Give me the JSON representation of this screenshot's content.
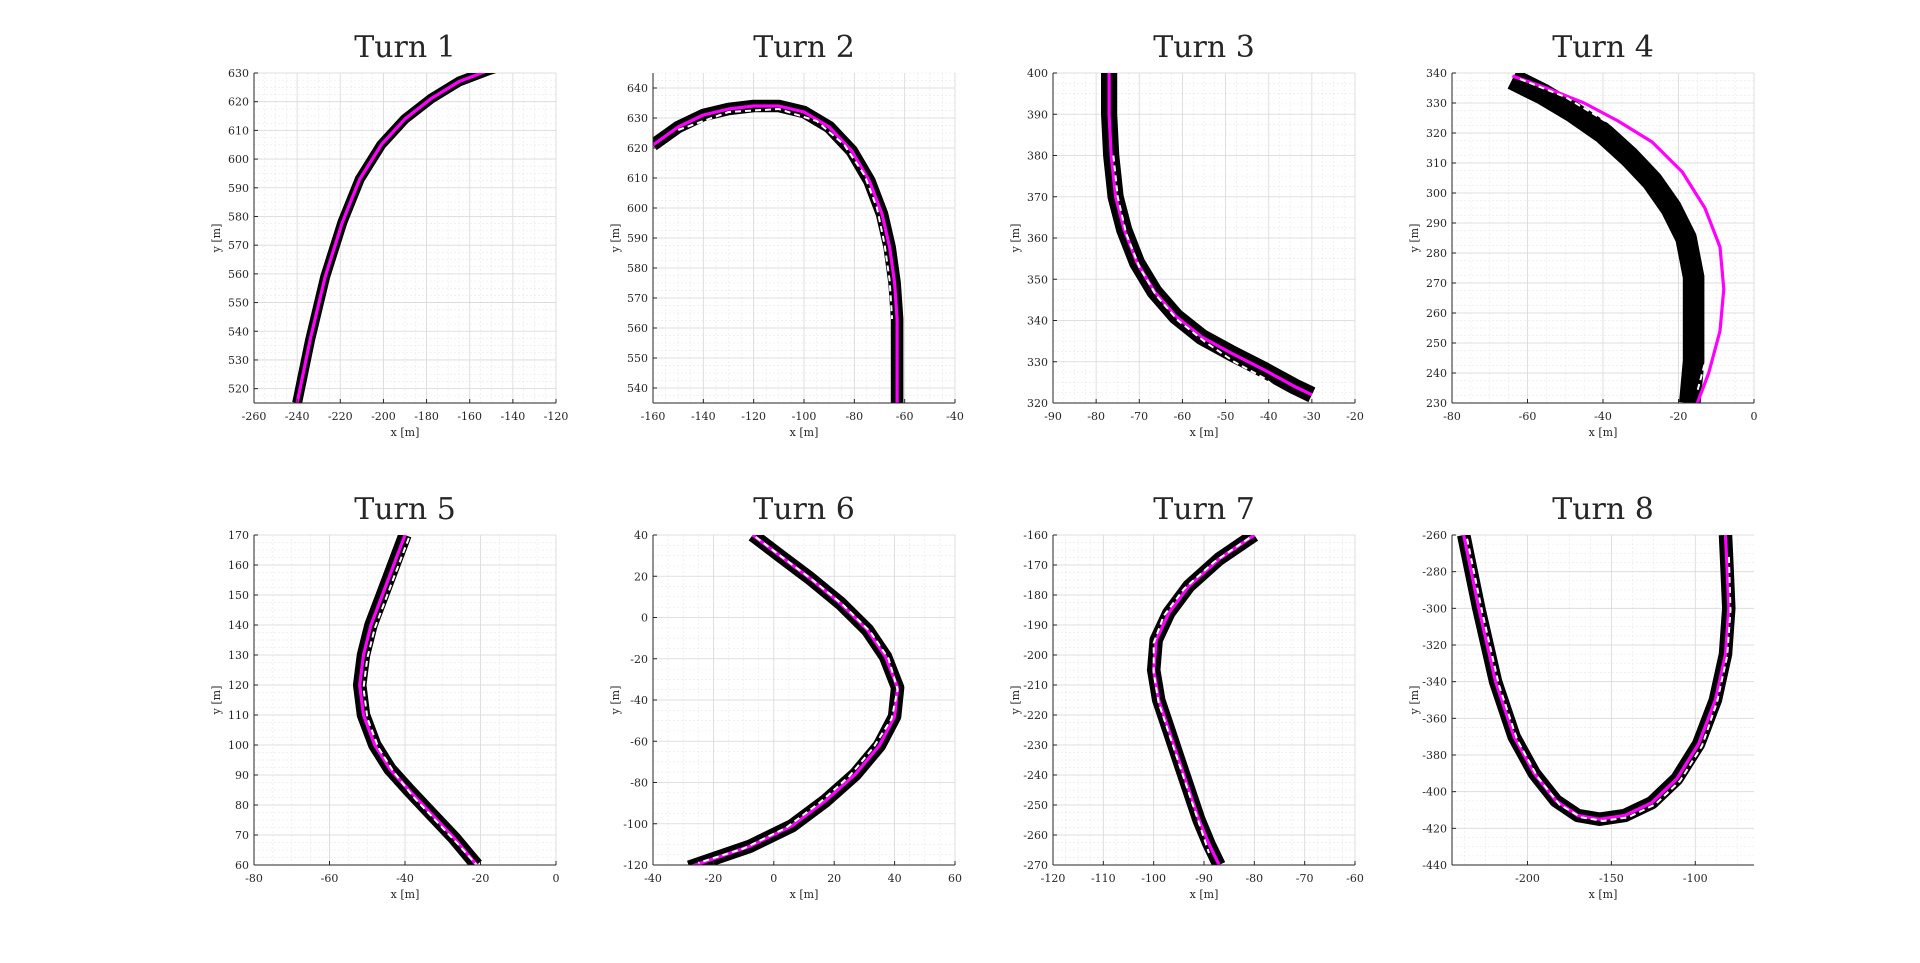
{
  "figure": {
    "background": "#ffffff",
    "grid": true,
    "minor_grid": true,
    "grid_color": "#d9d9d9",
    "minor_grid_color": "#ececec",
    "bundle_color": "#000000",
    "mean_color": "#ff00ff",
    "reference_color": "#ffffff",
    "reference_style": "dashed"
  },
  "chart_data": [
    {
      "type": "line",
      "title": "Turn 1",
      "xlabel": "x [m]",
      "ylabel": "y [m]",
      "xlim": [
        -260,
        -120
      ],
      "ylim": [
        515,
        630
      ],
      "xticks": [
        -260,
        -240,
        -220,
        -200,
        -180,
        -160,
        -140,
        -120
      ],
      "yticks": [
        520,
        530,
        540,
        550,
        560,
        570,
        580,
        590,
        600,
        610,
        620,
        630
      ],
      "series": [
        {
          "role": "trajectory_bundle",
          "width": 0.8,
          "x": [
            -240,
            -234,
            -227,
            -219,
            -211,
            -201,
            -190,
            -178,
            -165,
            -151,
            -139
          ],
          "y": [
            515,
            537,
            559,
            578,
            593,
            605,
            614,
            621,
            627,
            631,
            634
          ]
        },
        {
          "role": "mean",
          "x": [
            -240,
            -234,
            -227,
            -219,
            -211,
            -201,
            -190,
            -178,
            -165,
            -151,
            -139
          ],
          "y": [
            515,
            537,
            559,
            578,
            593,
            605,
            614,
            621,
            627,
            631,
            634
          ]
        }
      ]
    },
    {
      "type": "line",
      "title": "Turn 2",
      "xlabel": "x [m]",
      "ylabel": "y [m]",
      "xlim": [
        -160,
        -40
      ],
      "ylim": [
        535,
        645
      ],
      "xticks": [
        -160,
        -140,
        -120,
        -100,
        -80,
        -60,
        -40
      ],
      "yticks": [
        540,
        550,
        560,
        570,
        580,
        590,
        600,
        610,
        620,
        630,
        640
      ],
      "series": [
        {
          "role": "trajectory_bundle",
          "width": 1.4,
          "x": [
            -160,
            -150,
            -140,
            -130,
            -120,
            -110,
            -100,
            -90,
            -81,
            -74,
            -69,
            -66,
            -64,
            -63,
            -63,
            -63
          ],
          "y": [
            621,
            627,
            631,
            633,
            634,
            634,
            632,
            627,
            619,
            609,
            598,
            587,
            575,
            563,
            550,
            535
          ]
        },
        {
          "role": "mean",
          "x": [
            -160,
            -150,
            -140,
            -130,
            -120,
            -110,
            -100,
            -90,
            -81,
            -74,
            -69,
            -66,
            -64,
            -63,
            -63,
            -63
          ],
          "y": [
            621,
            627,
            631,
            633,
            634,
            634,
            632,
            627,
            619,
            609,
            598,
            587,
            575,
            563,
            550,
            535
          ]
        },
        {
          "role": "reference",
          "x": [
            -150,
            -130,
            -110,
            -95,
            -84,
            -76,
            -71,
            -68,
            -66,
            -65
          ],
          "y": [
            626,
            632,
            633,
            629,
            621,
            611,
            600,
            588,
            576,
            563
          ]
        }
      ]
    },
    {
      "type": "line",
      "title": "Turn 3",
      "xlabel": "x [m]",
      "ylabel": "y [m]",
      "xlim": [
        -90,
        -20
      ],
      "ylim": [
        320,
        400
      ],
      "xticks": [
        -90,
        -80,
        -70,
        -60,
        -50,
        -40,
        -30,
        -20
      ],
      "yticks": [
        320,
        330,
        340,
        350,
        360,
        370,
        380,
        390,
        400
      ],
      "series": [
        {
          "role": "trajectory_bundle",
          "width": 1.8,
          "x": [
            -77,
            -77,
            -76.5,
            -75.5,
            -73.5,
            -70.5,
            -66.5,
            -61.5,
            -55.5,
            -48.5,
            -41,
            -34,
            -30
          ],
          "y": [
            400,
            390,
            380,
            370,
            362,
            354,
            347,
            341,
            336,
            332,
            328,
            324,
            322
          ]
        },
        {
          "role": "mean",
          "x": [
            -77,
            -77,
            -76.5,
            -75.5,
            -73.5,
            -70.5,
            -66.5,
            -61.5,
            -55.5,
            -48.5,
            -41,
            -34,
            -30
          ],
          "y": [
            400,
            390,
            380,
            370,
            362,
            354,
            347,
            341,
            336,
            332,
            328,
            324,
            322
          ]
        },
        {
          "role": "reference",
          "x": [
            -76,
            -75,
            -73,
            -70,
            -66,
            -61,
            -55,
            -48,
            -41,
            -35
          ],
          "y": [
            380,
            370,
            361,
            353,
            346,
            340,
            335,
            330,
            326,
            321
          ]
        }
      ]
    },
    {
      "type": "line",
      "title": "Turn 4",
      "xlabel": "x [m]",
      "ylabel": "y [m]",
      "xlim": [
        -80,
        0
      ],
      "ylim": [
        230,
        340
      ],
      "xticks": [
        -80,
        -60,
        -40,
        -20,
        0
      ],
      "yticks": [
        230,
        240,
        250,
        260,
        270,
        280,
        290,
        300,
        310,
        320,
        330,
        340
      ],
      "series": [
        {
          "role": "trajectory_bundle",
          "width": 2.4,
          "x": [
            -64,
            -56,
            -48,
            -40,
            -33,
            -27,
            -22,
            -18,
            -16,
            -16,
            -16,
            -17
          ],
          "y": [
            338,
            333,
            327,
            320,
            312,
            304,
            295,
            285,
            272,
            258,
            244,
            230
          ]
        },
        {
          "role": "mean",
          "x": [
            -64,
            -55,
            -45,
            -36,
            -27,
            -19,
            -13,
            -9,
            -8,
            -9,
            -12,
            -15
          ],
          "y": [
            339,
            335,
            330,
            324,
            317,
            307,
            295,
            282,
            268,
            254,
            240,
            230
          ]
        },
        {
          "role": "reference",
          "x": [
            -62,
            -50,
            -38,
            -28,
            -20,
            -15,
            -12,
            -11,
            -12,
            -15
          ],
          "y": [
            338,
            332,
            323,
            314,
            303,
            290,
            276,
            262,
            248,
            234
          ]
        }
      ]
    },
    {
      "type": "line",
      "title": "Turn 5",
      "xlabel": "x [m]",
      "ylabel": "y [m]",
      "xlim": [
        -80,
        0
      ],
      "ylim": [
        60,
        170
      ],
      "xticks": [
        -80,
        -60,
        -40,
        -20,
        0
      ],
      "yticks": [
        60,
        70,
        80,
        90,
        100,
        110,
        120,
        130,
        140,
        150,
        160,
        170
      ],
      "series": [
        {
          "role": "trajectory_bundle",
          "width": 1.5,
          "x": [
            -40,
            -43,
            -46,
            -49,
            -51,
            -52,
            -51,
            -48,
            -44,
            -39,
            -33,
            -27,
            -21
          ],
          "y": [
            170,
            160,
            150,
            140,
            130,
            120,
            110,
            100,
            92,
            85,
            77,
            69,
            60
          ]
        },
        {
          "role": "mean",
          "x": [
            -40,
            -43,
            -46,
            -49,
            -51,
            -52,
            -51,
            -48,
            -44,
            -39,
            -33,
            -27,
            -21
          ],
          "y": [
            170,
            160,
            150,
            140,
            130,
            120,
            110,
            100,
            92,
            85,
            77,
            69,
            60
          ]
        },
        {
          "role": "reference",
          "x": [
            -39,
            -42,
            -45,
            -48,
            -50,
            -51,
            -50,
            -47,
            -43,
            -38,
            -32,
            -26,
            -21
          ],
          "y": [
            169,
            159,
            149,
            139,
            129,
            119,
            109,
            99,
            91,
            83,
            75,
            67,
            60
          ]
        }
      ]
    },
    {
      "type": "line",
      "title": "Turn 6",
      "xlabel": "x [m]",
      "ylabel": "y [m]",
      "xlim": [
        -40,
        60
      ],
      "ylim": [
        -120,
        40
      ],
      "xticks": [
        -40,
        -20,
        0,
        20,
        40,
        60
      ],
      "yticks": [
        -120,
        -100,
        -80,
        -60,
        -40,
        -20,
        0,
        20,
        40
      ],
      "series": [
        {
          "role": "trajectory_bundle",
          "width": 1.5,
          "x": [
            -7,
            2,
            12,
            22,
            31,
            37,
            41,
            40,
            35,
            27,
            17,
            6,
            -8,
            -28
          ],
          "y": [
            40,
            30,
            19,
            7,
            -6,
            -19,
            -34,
            -48,
            -62,
            -76,
            -89,
            -101,
            -111,
            -121
          ]
        },
        {
          "role": "mean",
          "x": [
            -7,
            2,
            12,
            22,
            31,
            37,
            41,
            40,
            35,
            27,
            17,
            6,
            -8,
            -28
          ],
          "y": [
            40,
            30,
            19,
            7,
            -6,
            -19,
            -34,
            -48,
            -62,
            -76,
            -89,
            -101,
            -111,
            -121
          ]
        },
        {
          "role": "reference",
          "x": [
            -6,
            3,
            13,
            23,
            32,
            38,
            41,
            39,
            33,
            25,
            15,
            4,
            -10,
            -25
          ],
          "y": [
            39,
            29,
            18,
            6,
            -7,
            -20,
            -35,
            -49,
            -63,
            -77,
            -90,
            -102,
            -112,
            -119
          ]
        }
      ]
    },
    {
      "type": "line",
      "title": "Turn 7",
      "xlabel": "x [m]",
      "ylabel": "y [m]",
      "xlim": [
        -120,
        -60
      ],
      "ylim": [
        -270,
        -160
      ],
      "xticks": [
        -120,
        -110,
        -100,
        -90,
        -80,
        -70,
        -60
      ],
      "yticks": [
        -270,
        -260,
        -250,
        -240,
        -230,
        -220,
        -210,
        -200,
        -190,
        -180,
        -170,
        -160
      ],
      "series": [
        {
          "role": "trajectory_bundle",
          "width": 1.5,
          "x": [
            -80,
            -87,
            -93,
            -97,
            -99.5,
            -100,
            -99,
            -97,
            -95,
            -93,
            -91,
            -89,
            -87
          ],
          "y": [
            -160,
            -168,
            -177,
            -186,
            -195,
            -205,
            -215,
            -225,
            -235,
            -245,
            -255,
            -263,
            -270
          ]
        },
        {
          "role": "mean",
          "x": [
            -80,
            -87,
            -93,
            -97,
            -99.5,
            -100,
            -99,
            -97,
            -95,
            -93,
            -91,
            -89,
            -87
          ],
          "y": [
            -160,
            -168,
            -177,
            -186,
            -195,
            -205,
            -215,
            -225,
            -235,
            -245,
            -255,
            -263,
            -270
          ]
        },
        {
          "role": "reference",
          "x": [
            -81,
            -88,
            -94,
            -98,
            -100,
            -100,
            -99,
            -97,
            -95,
            -93,
            -91,
            -89
          ],
          "y": [
            -161,
            -169,
            -178,
            -187,
            -196,
            -206,
            -216,
            -226,
            -236,
            -246,
            -256,
            -266
          ]
        }
      ]
    },
    {
      "type": "line",
      "title": "Turn 8",
      "xlabel": "x [m]",
      "ylabel": "y [m]",
      "xlim": [
        -245,
        -65
      ],
      "ylim": [
        -440,
        -260
      ],
      "xticks": [
        -200,
        -150,
        -100
      ],
      "yticks": [
        -440,
        -420,
        -400,
        -380,
        -360,
        -340,
        -320,
        -300,
        -280,
        -260
      ],
      "series": [
        {
          "role": "trajectory_bundle",
          "width": 1.5,
          "x": [
            -238,
            -229,
            -219,
            -208,
            -196,
            -183,
            -170,
            -157,
            -142,
            -126,
            -111,
            -98,
            -88,
            -82,
            -80,
            -81,
            -82
          ],
          "y": [
            -260,
            -300,
            -340,
            -370,
            -390,
            -405,
            -413,
            -415,
            -413,
            -406,
            -393,
            -374,
            -350,
            -325,
            -300,
            -280,
            -260
          ]
        },
        {
          "role": "mean",
          "x": [
            -238,
            -229,
            -219,
            -208,
            -196,
            -183,
            -170,
            -157,
            -142,
            -126,
            -111,
            -98,
            -88,
            -82,
            -80,
            -81,
            -82
          ],
          "y": [
            -260,
            -300,
            -340,
            -370,
            -390,
            -405,
            -413,
            -415,
            -413,
            -406,
            -393,
            -374,
            -350,
            -325,
            -300,
            -280,
            -260
          ]
        },
        {
          "role": "reference",
          "x": [
            -236,
            -227,
            -217,
            -206,
            -194,
            -181,
            -168,
            -155,
            -140,
            -124,
            -109,
            -96,
            -87,
            -81,
            -79,
            -80
          ],
          "y": [
            -262,
            -302,
            -342,
            -372,
            -392,
            -407,
            -414,
            -416,
            -414,
            -407,
            -394,
            -375,
            -351,
            -326,
            -301,
            -270
          ]
        }
      ]
    }
  ]
}
